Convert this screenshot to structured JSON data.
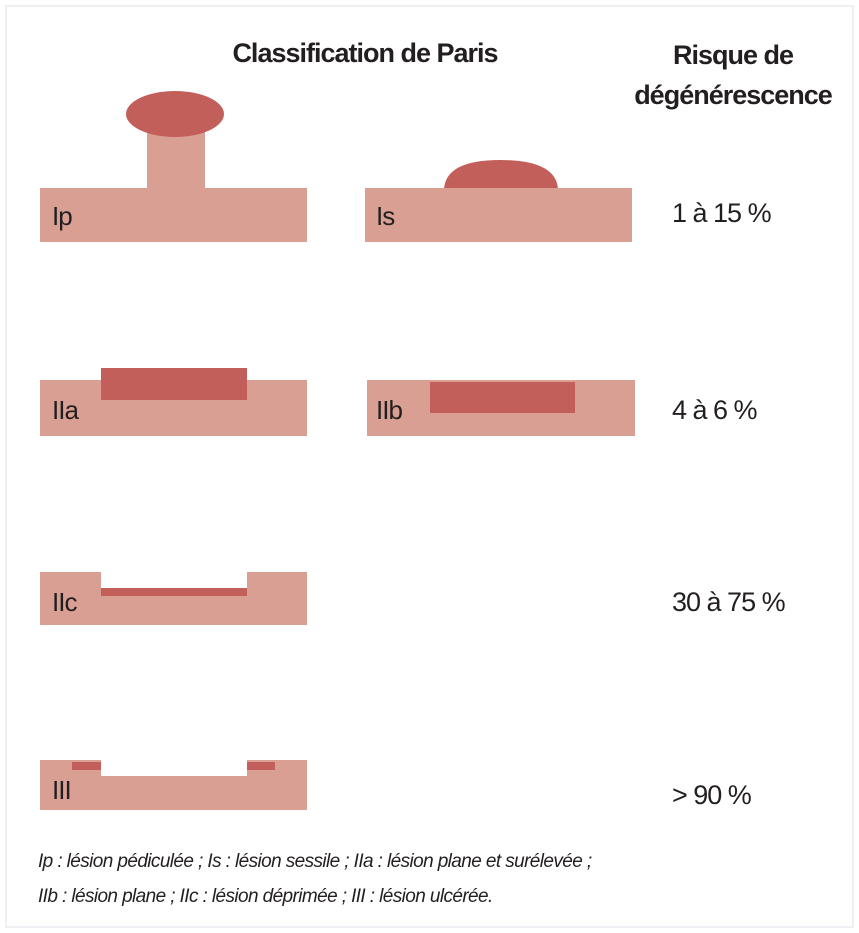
{
  "header": {
    "title": "Classification de Paris",
    "risk_title": [
      "Risque de",
      "dégénérescence"
    ]
  },
  "lesions": [
    "Ip",
    "Is",
    "IIa",
    "IIb",
    "IIc",
    "III"
  ],
  "risks": [
    "1 à 15 %",
    "4 à 6 %",
    "30 à 75 %",
    "> 90 %"
  ],
  "footnote": [
    "Ip : lésion pédiculée ; Is : lésion sessile ; IIa : lésion plane et surélevée ;",
    "IIb : lésion plane ; IIc : lésion déprimée ; III : lésion ulcérée."
  ]
}
